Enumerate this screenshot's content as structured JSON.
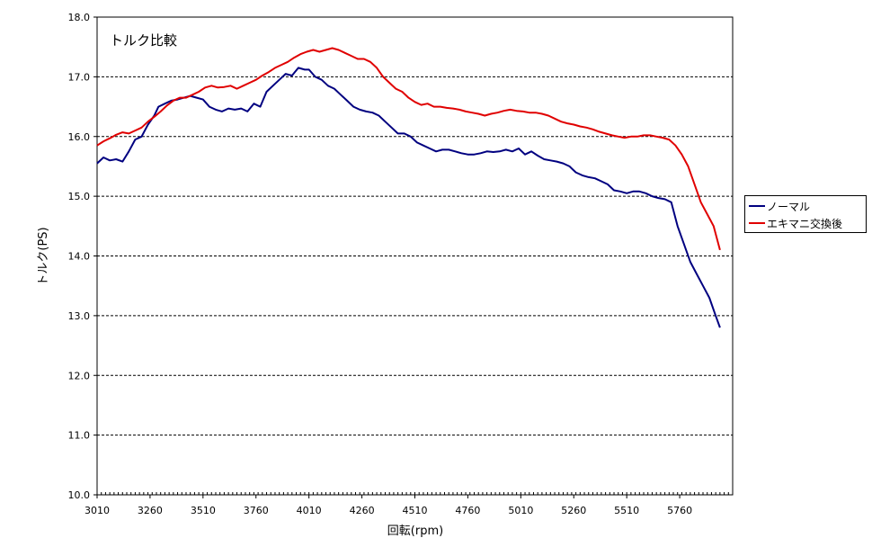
{
  "chart_data": {
    "type": "line",
    "title": "トルク比較",
    "xlabel": "回転(rpm)",
    "ylabel": "トルク(PS)",
    "xlim": [
      3010,
      6010
    ],
    "ylim": [
      10.0,
      18.0
    ],
    "x_ticks": [
      "3010",
      "3260",
      "3510",
      "3760",
      "4010",
      "4260",
      "4510",
      "4760",
      "5010",
      "5260",
      "5510",
      "5760"
    ],
    "x_tick_values": [
      3010,
      3260,
      3510,
      3760,
      4010,
      4260,
      4510,
      4760,
      5010,
      5260,
      5510,
      5760
    ],
    "y_ticks": [
      "10.0",
      "11.0",
      "12.0",
      "13.0",
      "14.0",
      "15.0",
      "16.0",
      "17.0",
      "18.0"
    ],
    "y_tick_values": [
      10,
      11,
      12,
      13,
      14,
      15,
      16,
      17,
      18
    ],
    "grid": "horizontal-dashed",
    "legend": "right",
    "series": [
      {
        "name": "ノーマル",
        "color": "#000080",
        "points": [
          [
            3010,
            15.55
          ],
          [
            3040,
            15.65
          ],
          [
            3070,
            15.6
          ],
          [
            3100,
            15.62
          ],
          [
            3130,
            15.58
          ],
          [
            3160,
            15.75
          ],
          [
            3190,
            15.95
          ],
          [
            3220,
            16.0
          ],
          [
            3250,
            16.2
          ],
          [
            3280,
            16.35
          ],
          [
            3300,
            16.5
          ],
          [
            3330,
            16.55
          ],
          [
            3360,
            16.6
          ],
          [
            3390,
            16.62
          ],
          [
            3420,
            16.65
          ],
          [
            3450,
            16.68
          ],
          [
            3480,
            16.65
          ],
          [
            3510,
            16.62
          ],
          [
            3540,
            16.5
          ],
          [
            3570,
            16.45
          ],
          [
            3600,
            16.42
          ],
          [
            3630,
            16.47
          ],
          [
            3660,
            16.45
          ],
          [
            3690,
            16.47
          ],
          [
            3720,
            16.42
          ],
          [
            3750,
            16.55
          ],
          [
            3780,
            16.5
          ],
          [
            3810,
            16.75
          ],
          [
            3840,
            16.85
          ],
          [
            3870,
            16.95
          ],
          [
            3900,
            17.05
          ],
          [
            3930,
            17.02
          ],
          [
            3960,
            17.15
          ],
          [
            3990,
            17.12
          ],
          [
            4010,
            17.12
          ],
          [
            4040,
            17.0
          ],
          [
            4070,
            16.95
          ],
          [
            4100,
            16.85
          ],
          [
            4130,
            16.8
          ],
          [
            4160,
            16.7
          ],
          [
            4190,
            16.6
          ],
          [
            4220,
            16.5
          ],
          [
            4250,
            16.45
          ],
          [
            4280,
            16.42
          ],
          [
            4310,
            16.4
          ],
          [
            4340,
            16.35
          ],
          [
            4370,
            16.25
          ],
          [
            4400,
            16.15
          ],
          [
            4430,
            16.05
          ],
          [
            4460,
            16.05
          ],
          [
            4490,
            16.0
          ],
          [
            4520,
            15.9
          ],
          [
            4550,
            15.85
          ],
          [
            4580,
            15.8
          ],
          [
            4610,
            15.75
          ],
          [
            4640,
            15.78
          ],
          [
            4670,
            15.78
          ],
          [
            4700,
            15.75
          ],
          [
            4730,
            15.72
          ],
          [
            4760,
            15.7
          ],
          [
            4790,
            15.7
          ],
          [
            4820,
            15.72
          ],
          [
            4850,
            15.75
          ],
          [
            4880,
            15.74
          ],
          [
            4910,
            15.75
          ],
          [
            4940,
            15.78
          ],
          [
            4970,
            15.75
          ],
          [
            5000,
            15.8
          ],
          [
            5030,
            15.7
          ],
          [
            5060,
            15.75
          ],
          [
            5090,
            15.68
          ],
          [
            5120,
            15.62
          ],
          [
            5150,
            15.6
          ],
          [
            5180,
            15.58
          ],
          [
            5210,
            15.55
          ],
          [
            5240,
            15.5
          ],
          [
            5270,
            15.4
          ],
          [
            5300,
            15.35
          ],
          [
            5330,
            15.32
          ],
          [
            5360,
            15.3
          ],
          [
            5390,
            15.25
          ],
          [
            5420,
            15.2
          ],
          [
            5450,
            15.1
          ],
          [
            5480,
            15.08
          ],
          [
            5510,
            15.05
          ],
          [
            5540,
            15.08
          ],
          [
            5570,
            15.08
          ],
          [
            5600,
            15.05
          ],
          [
            5630,
            15.0
          ],
          [
            5660,
            14.97
          ],
          [
            5690,
            14.95
          ],
          [
            5720,
            14.9
          ],
          [
            5750,
            14.5
          ],
          [
            5780,
            14.2
          ],
          [
            5810,
            13.9
          ],
          [
            5840,
            13.7
          ],
          [
            5870,
            13.5
          ],
          [
            5900,
            13.3
          ],
          [
            5930,
            13.0
          ],
          [
            5950,
            12.8
          ]
        ]
      },
      {
        "name": "エキマニ交換後",
        "color": "#e00000",
        "points": [
          [
            3010,
            15.85
          ],
          [
            3040,
            15.92
          ],
          [
            3070,
            15.97
          ],
          [
            3100,
            16.03
          ],
          [
            3130,
            16.07
          ],
          [
            3160,
            16.05
          ],
          [
            3190,
            16.1
          ],
          [
            3220,
            16.15
          ],
          [
            3250,
            16.25
          ],
          [
            3280,
            16.33
          ],
          [
            3310,
            16.42
          ],
          [
            3340,
            16.52
          ],
          [
            3370,
            16.6
          ],
          [
            3400,
            16.65
          ],
          [
            3430,
            16.65
          ],
          [
            3460,
            16.7
          ],
          [
            3490,
            16.75
          ],
          [
            3520,
            16.82
          ],
          [
            3550,
            16.85
          ],
          [
            3580,
            16.82
          ],
          [
            3610,
            16.83
          ],
          [
            3640,
            16.85
          ],
          [
            3670,
            16.8
          ],
          [
            3700,
            16.85
          ],
          [
            3730,
            16.9
          ],
          [
            3760,
            16.95
          ],
          [
            3790,
            17.02
          ],
          [
            3820,
            17.08
          ],
          [
            3850,
            17.15
          ],
          [
            3880,
            17.2
          ],
          [
            3910,
            17.25
          ],
          [
            3940,
            17.32
          ],
          [
            3970,
            17.38
          ],
          [
            4000,
            17.42
          ],
          [
            4030,
            17.45
          ],
          [
            4060,
            17.42
          ],
          [
            4090,
            17.45
          ],
          [
            4120,
            17.48
          ],
          [
            4150,
            17.45
          ],
          [
            4180,
            17.4
          ],
          [
            4210,
            17.35
          ],
          [
            4240,
            17.3
          ],
          [
            4270,
            17.3
          ],
          [
            4300,
            17.25
          ],
          [
            4330,
            17.15
          ],
          [
            4360,
            17.0
          ],
          [
            4390,
            16.9
          ],
          [
            4420,
            16.8
          ],
          [
            4450,
            16.75
          ],
          [
            4480,
            16.65
          ],
          [
            4510,
            16.58
          ],
          [
            4540,
            16.53
          ],
          [
            4570,
            16.55
          ],
          [
            4600,
            16.5
          ],
          [
            4630,
            16.5
          ],
          [
            4660,
            16.48
          ],
          [
            4690,
            16.47
          ],
          [
            4720,
            16.45
          ],
          [
            4750,
            16.42
          ],
          [
            4780,
            16.4
          ],
          [
            4810,
            16.38
          ],
          [
            4840,
            16.35
          ],
          [
            4870,
            16.38
          ],
          [
            4900,
            16.4
          ],
          [
            4930,
            16.43
          ],
          [
            4960,
            16.45
          ],
          [
            4990,
            16.43
          ],
          [
            5020,
            16.42
          ],
          [
            5050,
            16.4
          ],
          [
            5080,
            16.4
          ],
          [
            5110,
            16.38
          ],
          [
            5140,
            16.35
          ],
          [
            5170,
            16.3
          ],
          [
            5200,
            16.25
          ],
          [
            5230,
            16.22
          ],
          [
            5260,
            16.2
          ],
          [
            5290,
            16.17
          ],
          [
            5320,
            16.15
          ],
          [
            5350,
            16.12
          ],
          [
            5380,
            16.08
          ],
          [
            5410,
            16.05
          ],
          [
            5440,
            16.02
          ],
          [
            5470,
            16.0
          ],
          [
            5500,
            15.98
          ],
          [
            5530,
            16.0
          ],
          [
            5560,
            16.0
          ],
          [
            5590,
            16.02
          ],
          [
            5620,
            16.02
          ],
          [
            5650,
            16.0
          ],
          [
            5680,
            15.98
          ],
          [
            5710,
            15.95
          ],
          [
            5740,
            15.85
          ],
          [
            5770,
            15.7
          ],
          [
            5800,
            15.5
          ],
          [
            5830,
            15.2
          ],
          [
            5860,
            14.9
          ],
          [
            5890,
            14.7
          ],
          [
            5920,
            14.5
          ],
          [
            5950,
            14.1
          ]
        ]
      }
    ]
  }
}
